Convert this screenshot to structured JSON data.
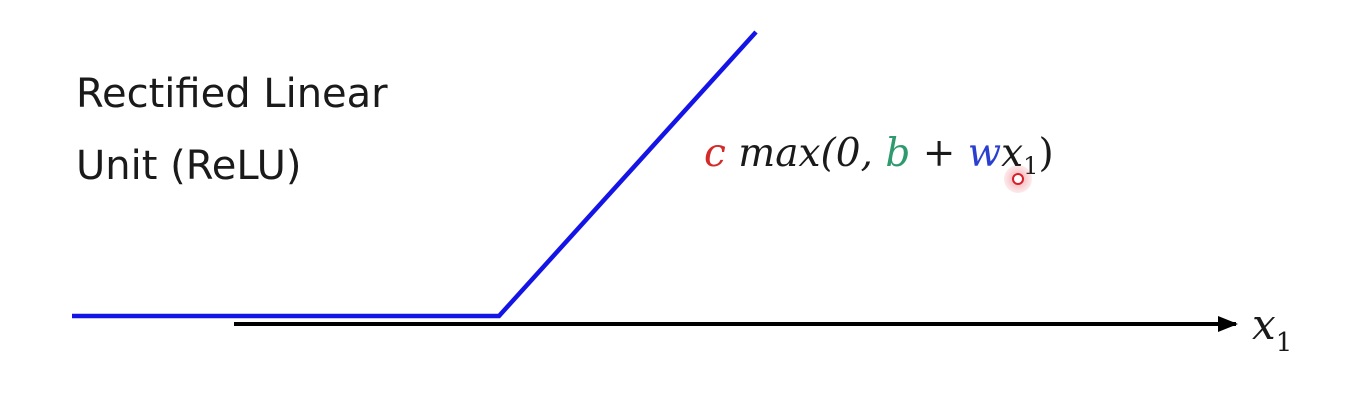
{
  "title": {
    "line1": "Rectified Linear",
    "line2": "Unit (ReLU)"
  },
  "formula": {
    "c": "c",
    "max_open": "max(0,",
    "b": "b",
    "plus": "+",
    "w": "w",
    "x": "x",
    "sub": "1",
    "close": ")",
    "colors": {
      "c": "#d42a2a",
      "b": "#2e9a6e",
      "w": "#2a3fcf",
      "text": "#1a1a1a"
    }
  },
  "axis": {
    "label": "x",
    "sub": "1",
    "color": "#000000"
  },
  "relu_line": {
    "color": "#1414e6"
  },
  "cursor": {
    "icon": "pointer-highlight-icon",
    "color": "#d81e2a"
  }
}
